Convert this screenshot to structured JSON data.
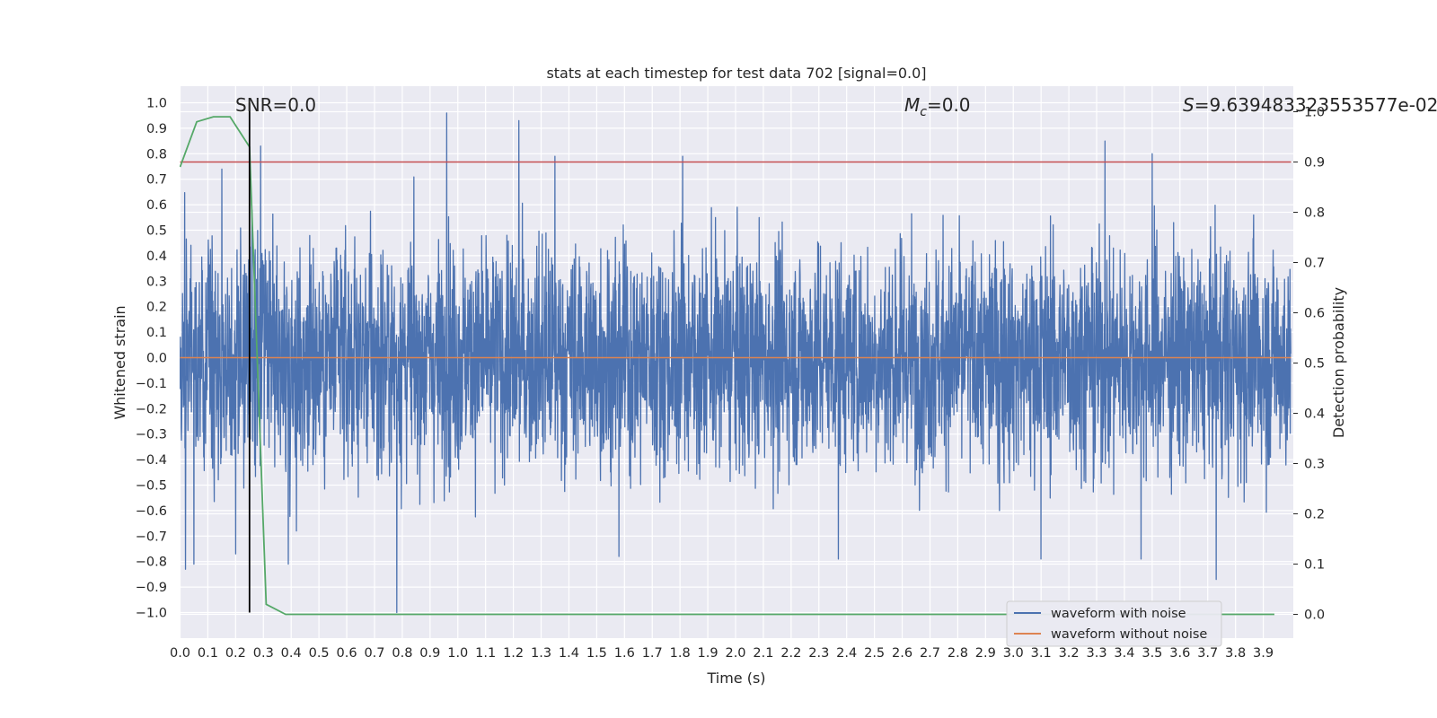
{
  "chart_data": {
    "type": "line",
    "title": "stats at each timestep for test data 702 [signal=0.0]",
    "xlabel": "Time (s)",
    "ylabel": "Whitened strain",
    "ylabel_right": "Detection probability",
    "xlim": [
      0.0,
      4.0
    ],
    "ylim": [
      -1.1,
      1.1
    ],
    "ylim_right": [
      -0.05,
      1.05
    ],
    "x_ticks": [
      "0.0",
      "0.1",
      "0.2",
      "0.3",
      "0.4",
      "0.5",
      "0.6",
      "0.7",
      "0.8",
      "0.9",
      "1.0",
      "1.1",
      "1.2",
      "1.3",
      "1.4",
      "1.5",
      "1.6",
      "1.7",
      "1.8",
      "1.9",
      "2.0",
      "2.1",
      "2.2",
      "2.3",
      "2.4",
      "2.5",
      "2.6",
      "2.7",
      "2.8",
      "2.9",
      "3.0",
      "3.1",
      "3.2",
      "3.3",
      "3.4",
      "3.5",
      "3.6",
      "3.7",
      "3.8",
      "3.9"
    ],
    "y_ticks": [
      "1.0",
      "0.9",
      "0.8",
      "0.7",
      "0.6",
      "0.5",
      "0.4",
      "0.3",
      "0.2",
      "0.1",
      "0.0",
      "−0.1",
      "−0.2",
      "−0.3",
      "−0.4",
      "−0.5",
      "−0.6",
      "−0.7",
      "−0.8",
      "−0.9",
      "−1.0"
    ],
    "y_ticks_right": [
      "1.0",
      "0.9",
      "0.8",
      "0.7",
      "0.6",
      "0.5",
      "0.4",
      "0.3",
      "0.2",
      "0.1",
      "0.0"
    ],
    "grid": true,
    "legend_position": "lower right",
    "annotations": {
      "snr": "SNR=0.0",
      "mc_symbol": "M",
      "mc_subscript": "c",
      "mc_value": "=0.0",
      "s_symbol": "S",
      "s_value": "=9.639483323553577e-02"
    },
    "series": [
      {
        "name": "waveform with noise",
        "color": "#4c72b0",
        "noise_std": 0.22,
        "peaks": [
          [
            0.02,
            -0.83
          ],
          [
            0.05,
            -0.81
          ],
          [
            0.15,
            0.74
          ],
          [
            0.2,
            -0.77
          ],
          [
            0.29,
            0.83
          ],
          [
            0.39,
            -0.81
          ],
          [
            0.78,
            -1.0
          ],
          [
            0.96,
            0.96
          ],
          [
            1.22,
            0.93
          ],
          [
            1.35,
            0.79
          ],
          [
            1.58,
            -0.78
          ],
          [
            1.81,
            0.79
          ],
          [
            2.37,
            -0.79
          ],
          [
            2.95,
            -0.6
          ],
          [
            3.1,
            -0.79
          ],
          [
            3.33,
            0.85
          ],
          [
            3.5,
            0.8
          ],
          [
            3.46,
            -0.79
          ],
          [
            3.73,
            -0.87
          ]
        ]
      },
      {
        "name": "waveform without noise",
        "color": "#dd8452",
        "values": [
          0.0,
          0.0
        ]
      },
      {
        "name": "detection probability",
        "color": "#55a868",
        "axis": "right",
        "x": [
          0.0,
          0.06,
          0.12,
          0.18,
          0.25,
          0.31,
          0.38,
          3.94
        ],
        "values": [
          0.89,
          0.98,
          0.99,
          0.99,
          0.93,
          0.02,
          0.0,
          0.0
        ]
      },
      {
        "name": "detection threshold",
        "color": "#c44e52",
        "axis": "right",
        "values": [
          0.9,
          0.9
        ]
      },
      {
        "name": "marker",
        "color": "#000000",
        "x": [
          0.25,
          0.25
        ],
        "values": [
          -1.0,
          1.0
        ]
      }
    ]
  }
}
